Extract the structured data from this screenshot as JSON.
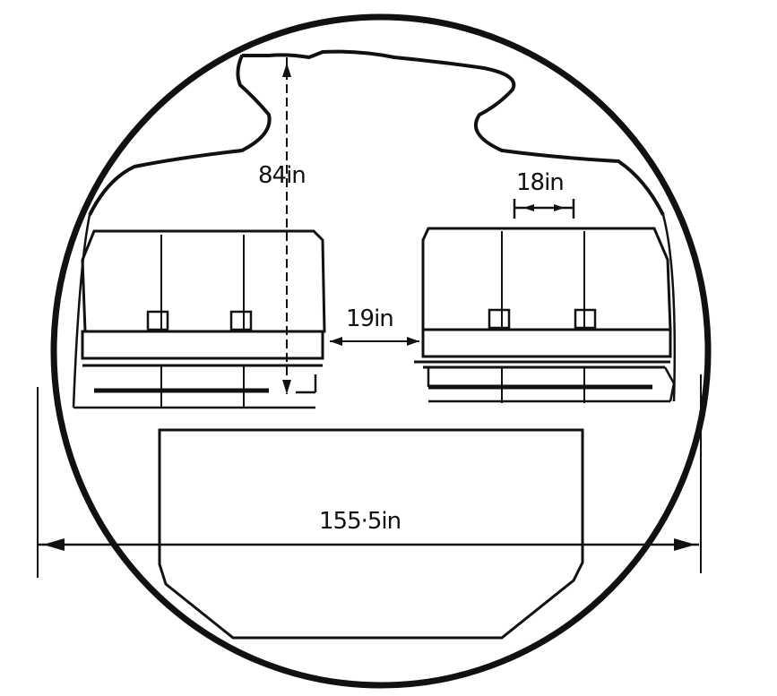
{
  "diagram": {
    "colors": {
      "ink": "#111111",
      "paper": "#ffffff",
      "seat_stipple": "#444444"
    },
    "labels": {
      "headroom_height": "84in",
      "seat_width": "18in",
      "aisle_width": "19in",
      "fuselage_width": "155·5in"
    },
    "seat_blocks": [
      {
        "side": "left",
        "seats": 3
      },
      {
        "side": "right",
        "seats": 3
      }
    ]
  }
}
